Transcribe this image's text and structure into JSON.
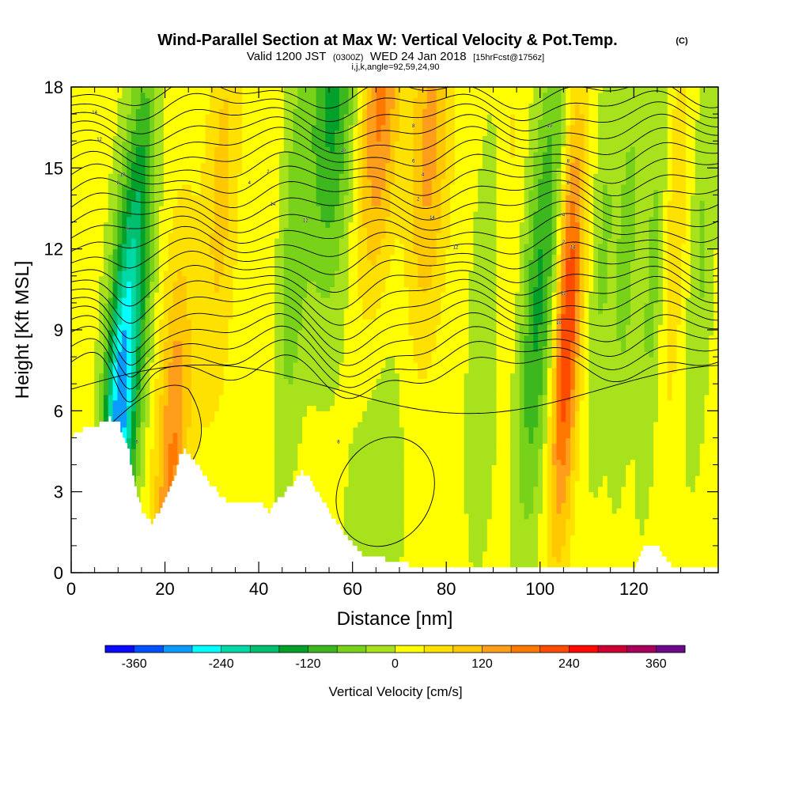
{
  "header": {
    "title": "Wind-Parallel Section at Max W: Vertical Velocity & Pot.Temp.",
    "copyright": "(C)",
    "valid_prefix": "Valid 1200 JST",
    "zulu": "(0300Z)",
    "valid_date": "WED 24 Jan 2018",
    "forecast": "[15hrFcst@1756z]",
    "indices": "i,j,k,angle=92,59,24,90"
  },
  "chart_data": {
    "type": "heatmap",
    "xlabel": "Distance [nm]",
    "ylabel": "Height [Kft MSL]",
    "xlim": [
      0,
      138
    ],
    "ylim": [
      0,
      18
    ],
    "xticks": [
      0,
      20,
      40,
      60,
      80,
      100,
      120
    ],
    "yticks": [
      0,
      3,
      6,
      9,
      12,
      15,
      18
    ],
    "grid": false,
    "colorbar": {
      "label": "Vertical Velocity [cm/s]",
      "ticks": [
        -360,
        -240,
        -120,
        0,
        120,
        240,
        360
      ],
      "range": [
        -400,
        400
      ],
      "step": 40,
      "colors": [
        "#0a0aff",
        "#0050ff",
        "#0a9bff",
        "#00ffff",
        "#00d9a6",
        "#00bf6e",
        "#00a02a",
        "#3cb81e",
        "#78d219",
        "#a8e21c",
        "#ffff00",
        "#ffe100",
        "#ffc800",
        "#ff9e1a",
        "#ff7800",
        "#ff4b00",
        "#ff0a00",
        "#cc0033",
        "#a8005a",
        "#6a0a8a"
      ]
    },
    "velocity_bands": [
      {
        "x": 10,
        "w": 2.2,
        "peak": -300,
        "taper": 5
      },
      {
        "x": 13,
        "w": 2.2,
        "peak": -150,
        "taper": 12
      },
      {
        "x": 22,
        "w": 2.5,
        "peak": 150,
        "taper": 4
      },
      {
        "x": 30,
        "w": 2.5,
        "peak": 80,
        "taper": 14
      },
      {
        "x": 46,
        "w": 2.0,
        "peak": -80,
        "taper": 12
      },
      {
        "x": 53,
        "w": 3.5,
        "peak": -150,
        "taper": 18
      },
      {
        "x": 63,
        "w": 3.0,
        "peak": 160,
        "taper": 18
      },
      {
        "x": 66,
        "w": 5.0,
        "peak": -40,
        "taper": 4
      },
      {
        "x": 74,
        "w": 3.0,
        "peak": 120,
        "taper": 16
      },
      {
        "x": 88,
        "w": 2.5,
        "peak": -60,
        "taper": 9
      },
      {
        "x": 91,
        "w": 2.0,
        "peak": 40,
        "taper": 14
      },
      {
        "x": 98,
        "w": 2.2,
        "peak": -120,
        "taper": 9
      },
      {
        "x": 101,
        "w": 2.0,
        "peak": -80,
        "taper": 14
      },
      {
        "x": 105,
        "w": 2.0,
        "peak": 230,
        "taper": 9
      },
      {
        "x": 112,
        "w": 1.8,
        "peak": -60,
        "taper": 12
      },
      {
        "x": 117,
        "w": 1.8,
        "peak": -70,
        "taper": 12
      },
      {
        "x": 123,
        "w": 1.8,
        "peak": -70,
        "taper": 11
      },
      {
        "x": 127,
        "w": 1.8,
        "peak": 60,
        "taper": 13
      },
      {
        "x": 133,
        "w": 1.8,
        "peak": -60,
        "taper": 12
      }
    ],
    "terrain": {
      "x": [
        0,
        2,
        6,
        8,
        10,
        12,
        13,
        14,
        15,
        17,
        18,
        20,
        22,
        23,
        24,
        26,
        28,
        31,
        33,
        37,
        40,
        42,
        44,
        47,
        49,
        51,
        53,
        55,
        57,
        59,
        61,
        63,
        70,
        72,
        120,
        121,
        122,
        124,
        125,
        126,
        128,
        130,
        138
      ],
      "y": [
        5.1,
        5.3,
        5.5,
        5.7,
        5.5,
        4.5,
        3.5,
        2.8,
        2.3,
        1.9,
        2.1,
        2.7,
        3.6,
        4.4,
        4.5,
        4.2,
        3.6,
        3.0,
        2.6,
        2.6,
        2.6,
        2.3,
        2.7,
        3.3,
        3.8,
        3.4,
        2.8,
        2.2,
        1.7,
        1.2,
        0.8,
        0.6,
        0.4,
        0.3,
        0.3,
        0.6,
        0.9,
        1.0,
        1.0,
        0.6,
        0.3,
        0.3,
        0.3
      ]
    },
    "theta_levels": 24,
    "theta_labels": [
      "14",
      "12",
      "10",
      "8",
      "6",
      "4",
      "2"
    ]
  }
}
